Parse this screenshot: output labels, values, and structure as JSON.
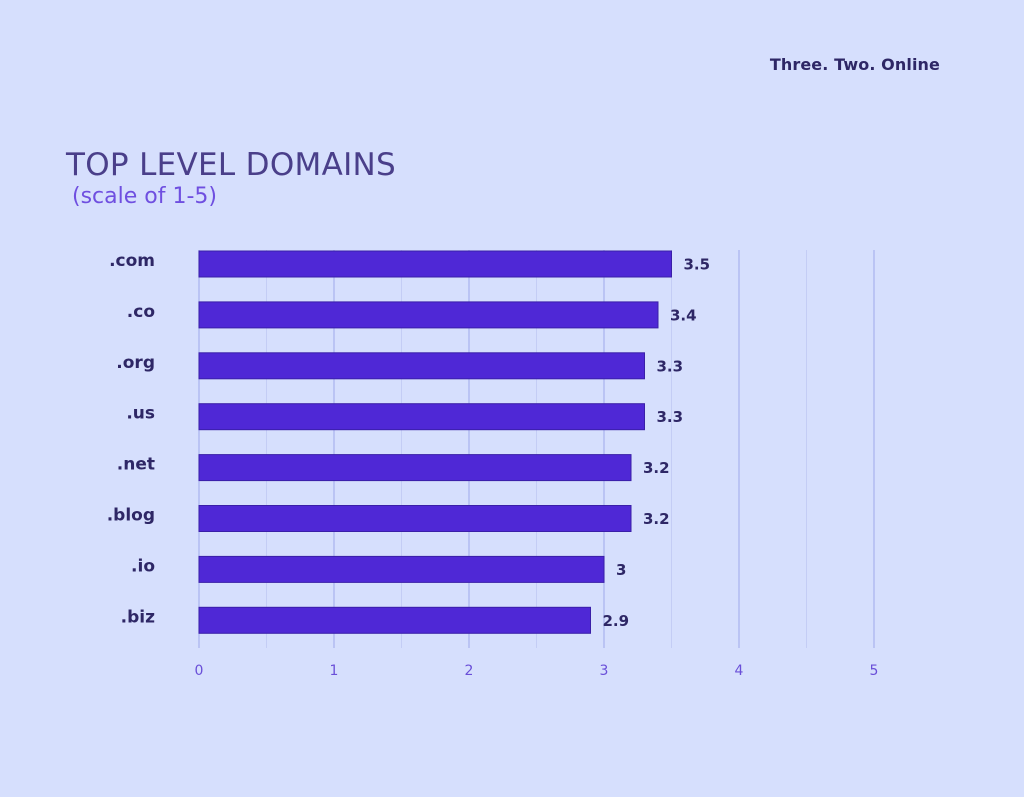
{
  "brand": "Three. Two. Online",
  "title": "TOP LEVEL DOMAINS",
  "subtitle": "(scale of 1-5)",
  "colors": {
    "background": "#d6dffd",
    "bar": "#4f28d6",
    "bar_border": "#3a1fa8",
    "major_grid": "#a9b3ee",
    "minor_grid": "#c4cdf5",
    "text": "#2e2766",
    "tick": "#6a4fd8"
  },
  "chart_data": {
    "type": "bar",
    "orientation": "horizontal",
    "title": "TOP LEVEL DOMAINS",
    "subtitle": "(scale of 1-5)",
    "categories": [
      ".com",
      ".co",
      ".org",
      ".us",
      ".net",
      ".blog",
      ".io",
      ".biz"
    ],
    "values": [
      3.5,
      3.4,
      3.3,
      3.3,
      3.2,
      3.2,
      3,
      2.9
    ],
    "value_labels": [
      "3.5",
      "3.4",
      "3.3",
      "3.3",
      "3.2",
      "3.2",
      "3",
      "2.9"
    ],
    "x_ticks": [
      "0",
      "1",
      "2",
      "3",
      "4",
      "5"
    ],
    "xlim": [
      0,
      5
    ],
    "grid": true,
    "legend": "none"
  }
}
